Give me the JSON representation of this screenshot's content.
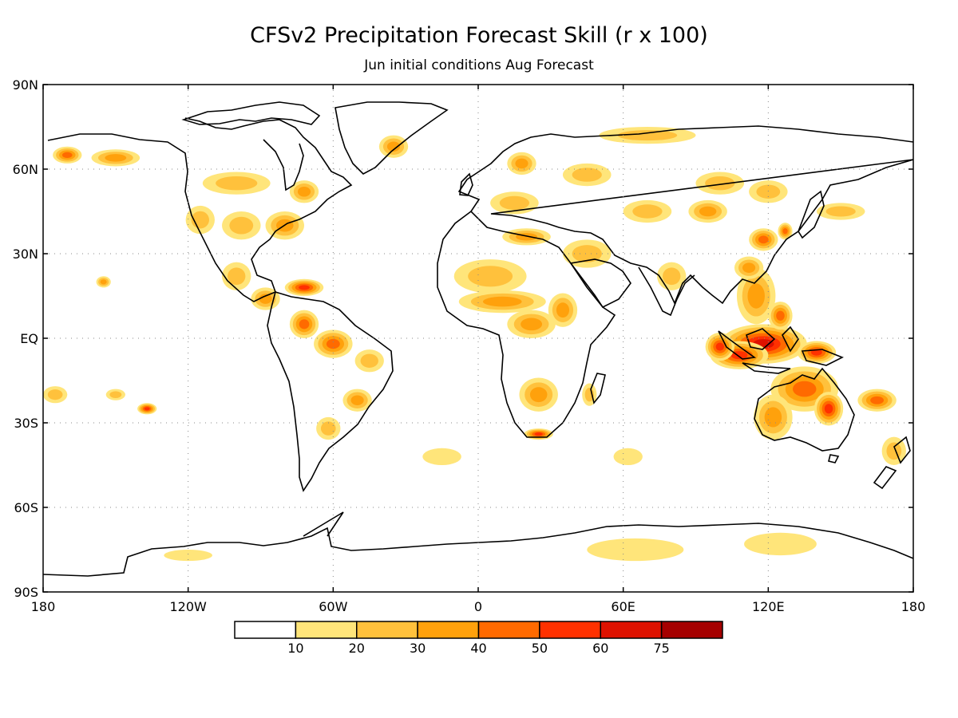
{
  "title": "CFSv2 Precipitation Forecast Skill (r x 100)",
  "subtitle": "Jun initial conditions  Aug Forecast",
  "lat_labels": [
    "90N",
    "60N",
    "30N",
    "EQ",
    "30S",
    "60S",
    "90S"
  ],
  "lon_labels": [
    "180",
    "120W",
    "60W",
    "0",
    "60E",
    "120E",
    "180"
  ],
  "colorbar": {
    "bins": [
      {
        "color": "#ffffff"
      },
      {
        "color": "#ffe57a"
      },
      {
        "color": "#ffc13c"
      },
      {
        "color": "#ffa10c"
      },
      {
        "color": "#ff6a00"
      },
      {
        "color": "#ff3100"
      },
      {
        "color": "#de1200"
      },
      {
        "color": "#a50000"
      }
    ],
    "labels": [
      "10",
      "20",
      "30",
      "40",
      "50",
      "60",
      "75"
    ]
  },
  "map_extent": {
    "lon": [
      -180,
      180
    ],
    "lat": [
      -90,
      90
    ]
  },
  "skill_regions": [
    {
      "name": "maritime-continent",
      "lon": 118,
      "lat": -2,
      "rx": 18,
      "ry": 7,
      "level": 6
    },
    {
      "name": "indonesia-south",
      "lon": 108,
      "lat": -6,
      "rx": 12,
      "ry": 5,
      "level": 5
    },
    {
      "name": "new-guinea",
      "lon": 140,
      "lat": -5,
      "rx": 8,
      "ry": 4,
      "level": 5
    },
    {
      "name": "australia-north",
      "lon": 135,
      "lat": -18,
      "rx": 14,
      "ry": 8,
      "level": 4
    },
    {
      "name": "australia-east",
      "lon": 145,
      "lat": -25,
      "rx": 6,
      "ry": 6,
      "level": 5
    },
    {
      "name": "australia-west",
      "lon": 122,
      "lat": -28,
      "rx": 8,
      "ry": 8,
      "level": 3
    },
    {
      "name": "indian-ocean-east",
      "lon": 100,
      "lat": -3,
      "rx": 6,
      "ry": 5,
      "level": 5
    },
    {
      "name": "south-china-sea",
      "lon": 115,
      "lat": 15,
      "rx": 8,
      "ry": 10,
      "level": 3
    },
    {
      "name": "philippines",
      "lon": 125,
      "lat": 8,
      "rx": 5,
      "ry": 5,
      "level": 4
    },
    {
      "name": "china-east",
      "lon": 118,
      "lat": 35,
      "rx": 6,
      "ry": 4,
      "level": 4
    },
    {
      "name": "china-south",
      "lon": 112,
      "lat": 25,
      "rx": 6,
      "ry": 4,
      "level": 3
    },
    {
      "name": "korea",
      "lon": 127,
      "lat": 38,
      "rx": 3,
      "ry": 3,
      "level": 4
    },
    {
      "name": "siberia-1",
      "lon": 100,
      "lat": 55,
      "rx": 10,
      "ry": 4,
      "level": 2
    },
    {
      "name": "siberia-2",
      "lon": 120,
      "lat": 52,
      "rx": 8,
      "ry": 4,
      "level": 2
    },
    {
      "name": "mongolia",
      "lon": 95,
      "lat": 45,
      "rx": 8,
      "ry": 4,
      "level": 3
    },
    {
      "name": "central-asia",
      "lon": 70,
      "lat": 45,
      "rx": 10,
      "ry": 4,
      "level": 2
    },
    {
      "name": "russia-west",
      "lon": 45,
      "lat": 58,
      "rx": 10,
      "ry": 4,
      "level": 2
    },
    {
      "name": "scandinavia",
      "lon": 18,
      "lat": 62,
      "rx": 6,
      "ry": 4,
      "level": 3
    },
    {
      "name": "arctic-russia",
      "lon": 70,
      "lat": 72,
      "rx": 20,
      "ry": 3,
      "level": 2
    },
    {
      "name": "europe",
      "lon": 15,
      "lat": 48,
      "rx": 10,
      "ry": 4,
      "level": 2
    },
    {
      "name": "mediterranean",
      "lon": 20,
      "lat": 36,
      "rx": 10,
      "ry": 3,
      "level": 3
    },
    {
      "name": "middle-east",
      "lon": 45,
      "lat": 30,
      "rx": 10,
      "ry": 5,
      "level": 2
    },
    {
      "name": "sahara",
      "lon": 5,
      "lat": 22,
      "rx": 15,
      "ry": 6,
      "level": 2
    },
    {
      "name": "sahel",
      "lon": 10,
      "lat": 13,
      "rx": 18,
      "ry": 4,
      "level": 3
    },
    {
      "name": "central-africa",
      "lon": 22,
      "lat": 5,
      "rx": 10,
      "ry": 5,
      "level": 3
    },
    {
      "name": "east-africa",
      "lon": 35,
      "lat": 10,
      "rx": 6,
      "ry": 6,
      "level": 3
    },
    {
      "name": "southern-africa",
      "lon": 25,
      "lat": -20,
      "rx": 8,
      "ry": 6,
      "level": 3
    },
    {
      "name": "south-africa-cape",
      "lon": 25,
      "lat": -34,
      "rx": 6,
      "ry": 2,
      "level": 5
    },
    {
      "name": "madagascar",
      "lon": 46,
      "lat": -20,
      "rx": 3,
      "ry": 4,
      "level": 2
    },
    {
      "name": "amazon",
      "lon": -60,
      "lat": -2,
      "rx": 8,
      "ry": 5,
      "level": 4
    },
    {
      "name": "colombia",
      "lon": -72,
      "lat": 5,
      "rx": 6,
      "ry": 5,
      "level": 4
    },
    {
      "name": "caribbean",
      "lon": -72,
      "lat": 18,
      "rx": 8,
      "ry": 3,
      "level": 5
    },
    {
      "name": "central-america",
      "lon": -88,
      "lat": 14,
      "rx": 6,
      "ry": 4,
      "level": 3
    },
    {
      "name": "mexico",
      "lon": -100,
      "lat": 22,
      "rx": 6,
      "ry": 5,
      "level": 2
    },
    {
      "name": "brazil-east",
      "lon": -45,
      "lat": -8,
      "rx": 6,
      "ry": 4,
      "level": 2
    },
    {
      "name": "brazil-south",
      "lon": -50,
      "lat": -22,
      "rx": 6,
      "ry": 4,
      "level": 3
    },
    {
      "name": "argentina",
      "lon": -62,
      "lat": -32,
      "rx": 5,
      "ry": 4,
      "level": 2
    },
    {
      "name": "usa-east",
      "lon": -80,
      "lat": 40,
      "rx": 8,
      "ry": 5,
      "level": 3
    },
    {
      "name": "usa-central",
      "lon": -98,
      "lat": 40,
      "rx": 8,
      "ry": 5,
      "level": 2
    },
    {
      "name": "usa-west",
      "lon": -115,
      "lat": 42,
      "rx": 6,
      "ry": 5,
      "level": 2
    },
    {
      "name": "canada",
      "lon": -100,
      "lat": 55,
      "rx": 14,
      "ry": 4,
      "level": 2
    },
    {
      "name": "canada-east",
      "lon": -72,
      "lat": 52,
      "rx": 6,
      "ry": 4,
      "level": 3
    },
    {
      "name": "alaska",
      "lon": -150,
      "lat": 64,
      "rx": 10,
      "ry": 3,
      "level": 3
    },
    {
      "name": "alaska-west",
      "lon": -170,
      "lat": 65,
      "rx": 6,
      "ry": 3,
      "level": 4
    },
    {
      "name": "greenland",
      "lon": -35,
      "lat": 68,
      "rx": 6,
      "ry": 4,
      "level": 3
    },
    {
      "name": "hawaii-pacific",
      "lon": -155,
      "lat": 20,
      "rx": 3,
      "ry": 2,
      "level": 3
    },
    {
      "name": "south-pacific-1",
      "lon": -175,
      "lat": -20,
      "rx": 5,
      "ry": 3,
      "level": 2
    },
    {
      "name": "south-pacific-2",
      "lon": -137,
      "lat": -25,
      "rx": 4,
      "ry": 2,
      "level": 5
    },
    {
      "name": "south-pacific-3",
      "lon": -150,
      "lat": -20,
      "rx": 4,
      "ry": 2,
      "level": 2
    },
    {
      "name": "tasman",
      "lon": 165,
      "lat": -22,
      "rx": 8,
      "ry": 4,
      "level": 4
    },
    {
      "name": "new-zealand",
      "lon": 172,
      "lat": -40,
      "rx": 5,
      "ry": 5,
      "level": 2
    },
    {
      "name": "antarctic-1",
      "lon": 65,
      "lat": -75,
      "rx": 20,
      "ry": 4,
      "level": 1
    },
    {
      "name": "antarctic-2",
      "lon": 125,
      "lat": -73,
      "rx": 15,
      "ry": 4,
      "level": 1
    },
    {
      "name": "antarctic-3",
      "lon": -120,
      "lat": -77,
      "rx": 10,
      "ry": 2,
      "level": 1
    },
    {
      "name": "pacific-north",
      "lon": 150,
      "lat": 45,
      "rx": 10,
      "ry": 3,
      "level": 2
    },
    {
      "name": "india",
      "lon": 80,
      "lat": 22,
      "rx": 6,
      "ry": 5,
      "level": 2
    },
    {
      "name": "indian-ocean-south",
      "lon": 62,
      "lat": -42,
      "rx": 6,
      "ry": 3,
      "level": 1
    },
    {
      "name": "south-atlantic",
      "lon": -15,
      "lat": -42,
      "rx": 8,
      "ry": 3,
      "level": 1
    }
  ]
}
